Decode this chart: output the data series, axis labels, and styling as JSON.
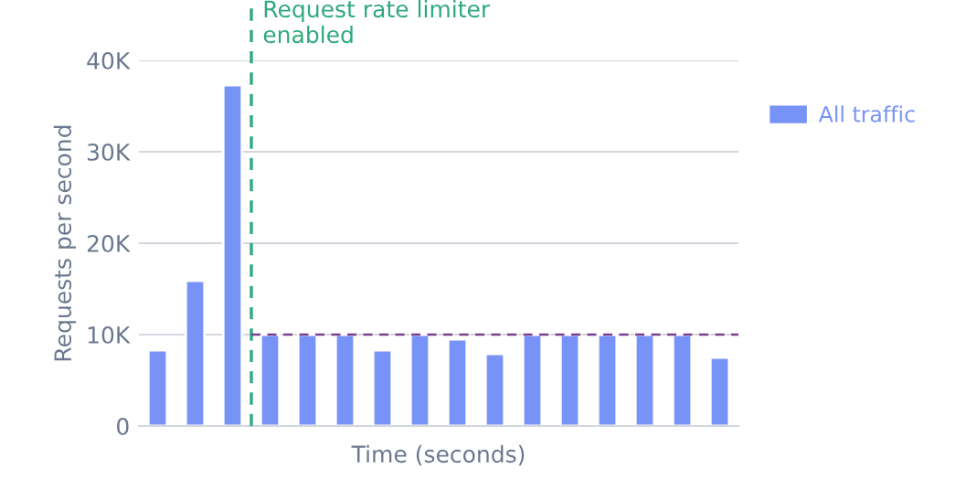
{
  "chart_data": {
    "type": "bar",
    "xlabel": "Time (seconds)",
    "ylabel": "Requests per second",
    "categories": [
      null,
      null,
      null,
      null,
      null,
      null,
      null,
      null,
      null,
      null,
      null,
      null,
      null,
      null,
      null,
      null
    ],
    "series": [
      {
        "name": "All traffic",
        "color": "#7893f7",
        "values": [
          8300,
          15900,
          37300,
          10000,
          10000,
          10000,
          8300,
          10000,
          9500,
          7900,
          10000,
          10000,
          10000,
          10000,
          10000,
          7500
        ]
      }
    ],
    "ylim": [
      0,
      40000
    ],
    "yticks": [
      0,
      {
        "value": 10000,
        "label": "10K"
      },
      {
        "value": 20000,
        "label": "20K"
      },
      {
        "value": 30000,
        "label": "30K"
      },
      {
        "value": 40000,
        "label": "40K"
      }
    ],
    "annotations": [
      "Request rate limiter\nenabled"
    ],
    "ref_lines": [
      {
        "axis": "y",
        "value": 10000,
        "color": "#7b3f8f",
        "line_style": "dashed"
      }
    ],
    "grid": "y",
    "legend": "right"
  }
}
